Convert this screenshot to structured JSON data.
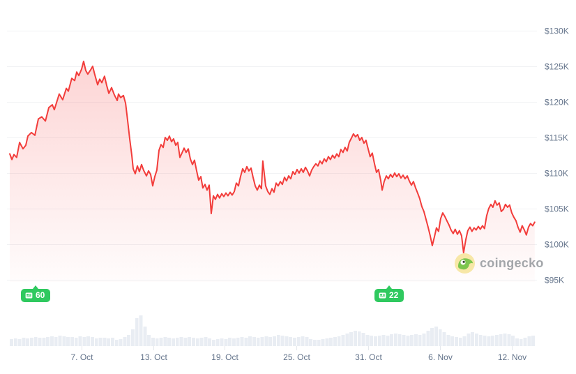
{
  "watermark": {
    "text": "coingecko"
  },
  "colors": {
    "line": "#f23d3b",
    "fill_top": "rgba(244,61,61,0.22)",
    "fill_bottom": "rgba(244,61,61,0.015)",
    "grid": "#f1f2f4",
    "axis_text": "#64748b",
    "volume": "#e9edf3",
    "badge_green": "#2fc95f",
    "watermark_text": "#a3a6aa"
  },
  "chart_data": {
    "type": "area",
    "grid": true,
    "legend": false,
    "y_axis": {
      "side": "right",
      "unit": "USD thousands",
      "ylim": [
        95,
        130
      ],
      "ticks": [
        {
          "label": "$130K",
          "value": 130
        },
        {
          "label": "$125K",
          "value": 125
        },
        {
          "label": "$120K",
          "value": 120
        },
        {
          "label": "$115K",
          "value": 115
        },
        {
          "label": "$110K",
          "value": 110
        },
        {
          "label": "$105K",
          "value": 105
        },
        {
          "label": "$100K",
          "value": 100
        },
        {
          "label": "$95K",
          "value": 95
        }
      ]
    },
    "x_axis": {
      "days_total": 44,
      "ticks": [
        {
          "label": "7. Oct",
          "day": 6
        },
        {
          "label": "13. Oct",
          "day": 12
        },
        {
          "label": "19. Oct",
          "day": 18
        },
        {
          "label": "25. Oct",
          "day": 24
        },
        {
          "label": "31. Oct",
          "day": 30
        },
        {
          "label": "6. Nov",
          "day": 36
        },
        {
          "label": "12. Nov",
          "day": 42
        }
      ]
    },
    "price_series": {
      "name": "Price (USD thousands)",
      "points": [
        [
          0,
          112.7
        ],
        [
          0.18,
          111.9
        ],
        [
          0.35,
          112.6
        ],
        [
          0.58,
          112.2
        ],
        [
          0.82,
          114.3
        ],
        [
          1.11,
          113.4
        ],
        [
          1.34,
          113.9
        ],
        [
          1.52,
          115.2
        ],
        [
          1.81,
          115.7
        ],
        [
          2.1,
          115.3
        ],
        [
          2.39,
          117.6
        ],
        [
          2.68,
          117.9
        ],
        [
          2.98,
          117.3
        ],
        [
          3.27,
          119.2
        ],
        [
          3.56,
          119.6
        ],
        [
          3.73,
          118.9
        ],
        [
          4.14,
          121.1
        ],
        [
          4.43,
          120.3
        ],
        [
          4.73,
          121.9
        ],
        [
          4.9,
          121.5
        ],
        [
          5.19,
          123.3
        ],
        [
          5.43,
          123.0
        ],
        [
          5.6,
          124.2
        ],
        [
          5.78,
          123.7
        ],
        [
          6.01,
          124.6
        ],
        [
          6.18,
          125.7
        ],
        [
          6.36,
          124.4
        ],
        [
          6.53,
          123.9
        ],
        [
          6.77,
          124.5
        ],
        [
          6.94,
          125.0
        ],
        [
          7.12,
          123.8
        ],
        [
          7.35,
          122.4
        ],
        [
          7.53,
          123.2
        ],
        [
          7.7,
          122.7
        ],
        [
          7.93,
          123.6
        ],
        [
          8.11,
          122.3
        ],
        [
          8.29,
          121.2
        ],
        [
          8.52,
          122.0
        ],
        [
          8.75,
          121.0
        ],
        [
          8.99,
          120.2
        ],
        [
          9.1,
          121.1
        ],
        [
          9.28,
          120.6
        ],
        [
          9.51,
          120.9
        ],
        [
          9.69,
          119.8
        ],
        [
          9.86,
          117.4
        ],
        [
          10.04,
          114.8
        ],
        [
          10.21,
          112.5
        ],
        [
          10.33,
          110.6
        ],
        [
          10.5,
          109.9
        ],
        [
          10.68,
          111.0
        ],
        [
          10.85,
          110.2
        ],
        [
          11.03,
          111.2
        ],
        [
          11.2,
          110.4
        ],
        [
          11.44,
          109.6
        ],
        [
          11.61,
          110.3
        ],
        [
          11.79,
          109.8
        ],
        [
          11.96,
          108.2
        ],
        [
          12.14,
          109.5
        ],
        [
          12.31,
          110.4
        ],
        [
          12.49,
          113.2
        ],
        [
          12.66,
          114.0
        ],
        [
          12.84,
          113.6
        ],
        [
          13.01,
          115.0
        ],
        [
          13.19,
          114.6
        ],
        [
          13.36,
          115.2
        ],
        [
          13.54,
          114.4
        ],
        [
          13.71,
          114.8
        ],
        [
          13.89,
          113.9
        ],
        [
          14.06,
          114.3
        ],
        [
          14.24,
          112.2
        ],
        [
          14.41,
          112.8
        ],
        [
          14.59,
          113.5
        ],
        [
          14.76,
          112.9
        ],
        [
          14.94,
          113.4
        ],
        [
          15.11,
          112.0
        ],
        [
          15.29,
          111.2
        ],
        [
          15.46,
          111.8
        ],
        [
          15.64,
          110.3
        ],
        [
          15.81,
          109.0
        ],
        [
          15.99,
          109.5
        ],
        [
          16.16,
          107.9
        ],
        [
          16.34,
          108.4
        ],
        [
          16.51,
          107.6
        ],
        [
          16.69,
          108.3
        ],
        [
          16.86,
          104.3
        ],
        [
          17.04,
          106.8
        ],
        [
          17.21,
          106.3
        ],
        [
          17.39,
          107.0
        ],
        [
          17.56,
          106.5
        ],
        [
          17.74,
          107.1
        ],
        [
          17.91,
          106.7
        ],
        [
          18.09,
          107.2
        ],
        [
          18.26,
          106.8
        ],
        [
          18.44,
          107.3
        ],
        [
          18.61,
          106.9
        ],
        [
          18.79,
          107.4
        ],
        [
          18.96,
          108.6
        ],
        [
          19.14,
          108.2
        ],
        [
          19.31,
          109.5
        ],
        [
          19.49,
          110.6
        ],
        [
          19.66,
          110.1
        ],
        [
          19.84,
          110.9
        ],
        [
          20.01,
          110.3
        ],
        [
          20.19,
          110.7
        ],
        [
          20.36,
          109.4
        ],
        [
          20.54,
          108.2
        ],
        [
          20.71,
          107.6
        ],
        [
          20.89,
          108.3
        ],
        [
          21.06,
          107.8
        ],
        [
          21.18,
          111.7
        ],
        [
          21.3,
          109.9
        ],
        [
          21.41,
          108.2
        ],
        [
          21.59,
          107.4
        ],
        [
          21.76,
          107.0
        ],
        [
          21.94,
          107.8
        ],
        [
          22.11,
          107.3
        ],
        [
          22.29,
          108.6
        ],
        [
          22.46,
          108.2
        ],
        [
          22.64,
          108.8
        ],
        [
          22.81,
          108.4
        ],
        [
          22.99,
          109.4
        ],
        [
          23.16,
          108.9
        ],
        [
          23.34,
          109.6
        ],
        [
          23.51,
          109.2
        ],
        [
          23.69,
          110.2
        ],
        [
          23.86,
          109.8
        ],
        [
          24.04,
          110.5
        ],
        [
          24.21,
          110.0
        ],
        [
          24.39,
          110.6
        ],
        [
          24.56,
          110.1
        ],
        [
          24.74,
          110.8
        ],
        [
          24.91,
          110.3
        ],
        [
          25.09,
          109.6
        ],
        [
          25.26,
          110.4
        ],
        [
          25.44,
          110.9
        ],
        [
          25.61,
          111.3
        ],
        [
          25.79,
          111.0
        ],
        [
          25.96,
          111.7
        ],
        [
          26.14,
          111.3
        ],
        [
          26.31,
          112.0
        ],
        [
          26.49,
          111.6
        ],
        [
          26.66,
          112.3
        ],
        [
          26.84,
          111.9
        ],
        [
          27.01,
          112.5
        ],
        [
          27.19,
          112.1
        ],
        [
          27.36,
          112.7
        ],
        [
          27.54,
          112.3
        ],
        [
          27.71,
          113.3
        ],
        [
          27.89,
          112.9
        ],
        [
          28.06,
          113.6
        ],
        [
          28.24,
          113.1
        ],
        [
          28.41,
          114.3
        ],
        [
          28.59,
          114.9
        ],
        [
          28.76,
          115.5
        ],
        [
          28.94,
          115.1
        ],
        [
          29.11,
          115.4
        ],
        [
          29.29,
          114.6
        ],
        [
          29.46,
          115.0
        ],
        [
          29.64,
          114.2
        ],
        [
          29.81,
          114.6
        ],
        [
          29.99,
          113.4
        ],
        [
          30.16,
          112.3
        ],
        [
          30.34,
          112.8
        ],
        [
          30.51,
          111.4
        ],
        [
          30.69,
          110.1
        ],
        [
          30.86,
          110.5
        ],
        [
          31.04,
          109.0
        ],
        [
          31.16,
          107.6
        ],
        [
          31.33,
          108.8
        ],
        [
          31.51,
          109.6
        ],
        [
          31.68,
          109.2
        ],
        [
          31.86,
          109.8
        ],
        [
          32.03,
          109.4
        ],
        [
          32.21,
          110.0
        ],
        [
          32.38,
          109.5
        ],
        [
          32.56,
          109.9
        ],
        [
          32.73,
          109.3
        ],
        [
          32.91,
          109.7
        ],
        [
          33.08,
          109.2
        ],
        [
          33.26,
          109.6
        ],
        [
          33.43,
          108.9
        ],
        [
          33.61,
          108.3
        ],
        [
          33.78,
          108.8
        ],
        [
          33.96,
          107.9
        ],
        [
          34.13,
          107.2
        ],
        [
          34.31,
          106.4
        ],
        [
          34.48,
          105.3
        ],
        [
          34.66,
          104.6
        ],
        [
          34.83,
          103.5
        ],
        [
          35.01,
          102.4
        ],
        [
          35.18,
          101.2
        ],
        [
          35.36,
          99.8
        ],
        [
          35.53,
          101.0
        ],
        [
          35.71,
          102.3
        ],
        [
          35.88,
          101.8
        ],
        [
          36.06,
          103.6
        ],
        [
          36.23,
          104.4
        ],
        [
          36.41,
          103.9
        ],
        [
          36.58,
          103.3
        ],
        [
          36.76,
          102.7
        ],
        [
          36.93,
          102.0
        ],
        [
          37.11,
          101.5
        ],
        [
          37.28,
          102.1
        ],
        [
          37.46,
          101.4
        ],
        [
          37.63,
          101.9
        ],
        [
          37.81,
          101.2
        ],
        [
          37.98,
          98.8
        ],
        [
          38.16,
          100.6
        ],
        [
          38.33,
          101.9
        ],
        [
          38.51,
          102.4
        ],
        [
          38.68,
          101.8
        ],
        [
          38.86,
          102.3
        ],
        [
          39.03,
          102.0
        ],
        [
          39.21,
          102.5
        ],
        [
          39.38,
          102.1
        ],
        [
          39.56,
          102.6
        ],
        [
          39.73,
          102.2
        ],
        [
          39.91,
          104.0
        ],
        [
          40.08,
          105.0
        ],
        [
          40.26,
          105.6
        ],
        [
          40.43,
          105.2
        ],
        [
          40.61,
          106.1
        ],
        [
          40.78,
          105.5
        ],
        [
          40.96,
          105.8
        ],
        [
          41.13,
          104.6
        ],
        [
          41.31,
          104.9
        ],
        [
          41.48,
          105.6
        ],
        [
          41.66,
          105.2
        ],
        [
          41.83,
          105.5
        ],
        [
          42.01,
          104.4
        ],
        [
          42.18,
          103.8
        ],
        [
          42.36,
          103.3
        ],
        [
          42.53,
          102.4
        ],
        [
          42.71,
          101.7
        ],
        [
          42.88,
          102.6
        ],
        [
          43.06,
          102.0
        ],
        [
          43.23,
          101.3
        ],
        [
          43.41,
          102.4
        ],
        [
          43.58,
          102.9
        ],
        [
          43.76,
          102.6
        ],
        [
          43.93,
          103.1
        ]
      ]
    },
    "volume_series": {
      "name": "Volume (relative units)",
      "values": [
        10,
        11,
        10,
        12,
        11,
        12,
        13,
        12,
        12,
        13,
        14,
        13,
        15,
        14,
        13,
        13,
        12,
        14,
        13,
        14,
        13,
        11,
        12,
        12,
        11,
        12,
        9,
        10,
        13,
        16,
        24,
        40,
        44,
        28,
        16,
        12,
        11,
        12,
        13,
        12,
        11,
        12,
        13,
        12,
        13,
        12,
        11,
        12,
        13,
        11,
        9,
        10,
        11,
        10,
        12,
        11,
        12,
        13,
        12,
        14,
        13,
        12,
        13,
        14,
        13,
        14,
        16,
        15,
        14,
        13,
        12,
        13,
        14,
        13,
        10,
        9,
        9,
        10,
        11,
        12,
        13,
        14,
        16,
        18,
        20,
        22,
        21,
        19,
        16,
        15,
        14,
        15,
        16,
        15,
        17,
        18,
        17,
        16,
        15,
        16,
        17,
        16,
        18,
        22,
        26,
        28,
        24,
        20,
        16,
        14,
        13,
        12,
        14,
        18,
        20,
        18,
        16,
        15,
        14,
        15,
        16,
        17,
        18,
        17,
        15,
        11,
        10,
        12,
        14,
        15
      ]
    },
    "annotations": [
      {
        "label": "60",
        "day": 1.8
      },
      {
        "label": "22",
        "day": 31.4
      }
    ]
  }
}
